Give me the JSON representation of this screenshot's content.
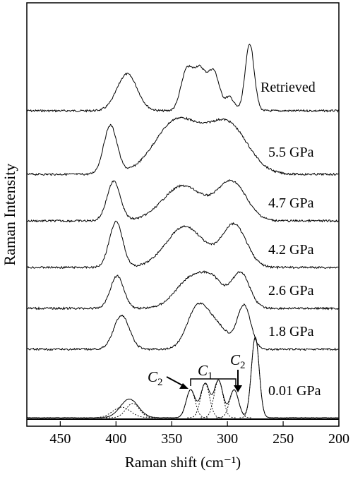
{
  "chart_data": {
    "type": "line",
    "title": "",
    "xlabel": "Raman shift (cm⁻¹)",
    "ylabel": "Raman Intensity",
    "x_reversed": true,
    "xlim": [
      480,
      200
    ],
    "xticks": [
      450,
      400,
      350,
      300,
      250,
      200
    ],
    "grid": false,
    "line_color": "#000000",
    "series": [
      {
        "name": "Retrieved",
        "peaks": [
          [
            390,
            0.55,
            9
          ],
          [
            337,
            0.55,
            5
          ],
          [
            325,
            0.62,
            6
          ],
          [
            312,
            0.55,
            5
          ],
          [
            298,
            0.2,
            4
          ],
          [
            280,
            1.0,
            4
          ]
        ]
      },
      {
        "name": "5.5 GPa",
        "peaks": [
          [
            405,
            0.88,
            6
          ],
          [
            345,
            0.98,
            20
          ],
          [
            300,
            0.9,
            18
          ]
        ]
      },
      {
        "name": "4.7 GPa",
        "peaks": [
          [
            402,
            0.9,
            6
          ],
          [
            340,
            0.8,
            18
          ],
          [
            296,
            0.88,
            13
          ]
        ]
      },
      {
        "name": "4.2 GPa",
        "peaks": [
          [
            400,
            0.95,
            6
          ],
          [
            338,
            0.85,
            17
          ],
          [
            294,
            0.88,
            11
          ]
        ]
      },
      {
        "name": "2.6 GPa",
        "peaks": [
          [
            399,
            0.85,
            6
          ],
          [
            332,
            0.8,
            14
          ],
          [
            312,
            0.55,
            10
          ],
          [
            288,
            0.92,
            8
          ]
        ]
      },
      {
        "name": "1.8 GPa",
        "peaks": [
          [
            395,
            0.8,
            7
          ],
          [
            328,
            0.8,
            9
          ],
          [
            312,
            0.6,
            12
          ],
          [
            285,
            1.0,
            6
          ]
        ]
      },
      {
        "name": "0.01 GPa",
        "peaks": [
          [
            388,
            0.3,
            8
          ],
          [
            333,
            0.45,
            4
          ],
          [
            320,
            0.55,
            4
          ],
          [
            308,
            0.6,
            4
          ],
          [
            294,
            0.45,
            4
          ],
          [
            275,
            1.3,
            3.5
          ]
        ]
      }
    ],
    "components": [
      {
        "center": 395,
        "amp": 0.17,
        "width": 8
      },
      {
        "center": 385,
        "amp": 0.23,
        "width": 6
      },
      {
        "center": 333,
        "amp": 0.45,
        "width": 4
      },
      {
        "center": 320,
        "amp": 0.55,
        "width": 4
      },
      {
        "center": 308,
        "amp": 0.6,
        "width": 4
      },
      {
        "center": 294,
        "amp": 0.45,
        "width": 4
      },
      {
        "center": 275,
        "amp": 1.3,
        "width": 3.5
      }
    ],
    "annotations": [
      {
        "text": "C",
        "sub": "2"
      },
      {
        "text": "C",
        "sub": "1"
      },
      {
        "text": "C",
        "sub": "2"
      }
    ]
  }
}
